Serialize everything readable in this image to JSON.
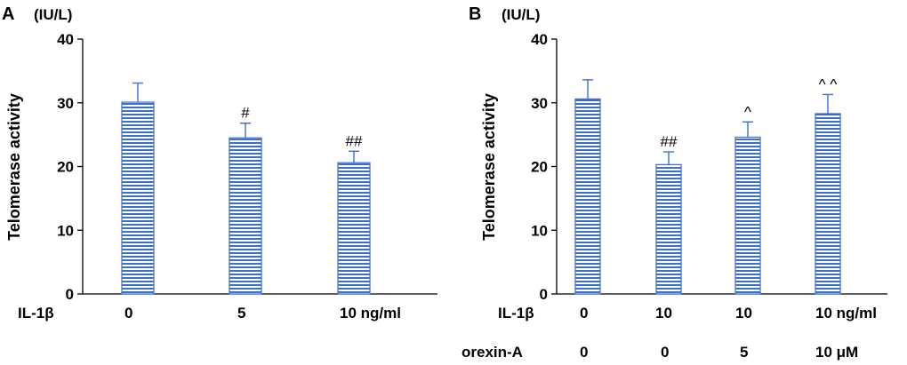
{
  "chart_data": [
    {
      "type": "bar",
      "panel": "A",
      "unit": "(IU/L)",
      "ylabel": "Telomerase activity",
      "ylim": [
        0,
        40
      ],
      "yticks": [
        "0",
        "10",
        "20",
        "30",
        "40"
      ],
      "rows": [
        {
          "label": "IL-1β",
          "values": [
            "0",
            "5",
            "10 ng/ml"
          ]
        }
      ],
      "values": [
        30.1,
        24.5,
        20.6
      ],
      "errors": [
        3.0,
        2.3,
        1.8
      ],
      "significance": [
        "",
        "#",
        "##"
      ],
      "bar_color": "#3b6fd0"
    },
    {
      "type": "bar",
      "panel": "B",
      "unit": "(IU/L)",
      "ylabel": "Telomerase activity",
      "ylim": [
        0,
        40
      ],
      "yticks": [
        "0",
        "10",
        "20",
        "30",
        "40"
      ],
      "rows": [
        {
          "label": "IL-1β",
          "values": [
            "0",
            "10",
            "10",
            "10 ng/ml"
          ]
        },
        {
          "label": "orexin-A",
          "values": [
            "0",
            "0",
            "5",
            "10 μM"
          ]
        }
      ],
      "values": [
        30.6,
        20.3,
        24.6,
        28.3
      ],
      "errors": [
        3.0,
        2.0,
        2.4,
        3.0
      ],
      "significance": [
        "",
        "##",
        "^",
        "^ ^"
      ],
      "bar_color": "#3b6fd0"
    }
  ]
}
